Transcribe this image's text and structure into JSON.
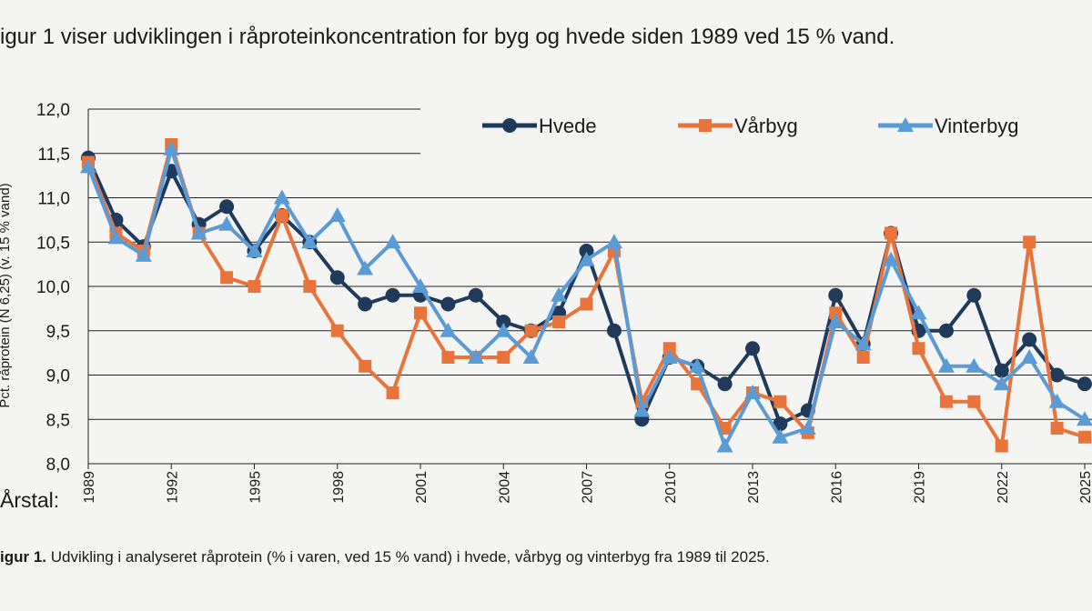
{
  "intro": "igur 1 viser udviklingen i råproteinkoncentration for byg og hvede siden 1989 ved 15 % vand.",
  "chart_data": {
    "type": "line",
    "y_label": "Pct. råprotein (N 6,25) (v. 15 % vand)",
    "x_label": "Årstal:",
    "x": [
      1989,
      1990,
      1991,
      1992,
      1993,
      1994,
      1995,
      1996,
      1997,
      1998,
      1999,
      2000,
      2001,
      2002,
      2003,
      2004,
      2005,
      2006,
      2007,
      2008,
      2009,
      2010,
      2011,
      2012,
      2013,
      2014,
      2015,
      2016,
      2017,
      2018,
      2019,
      2020,
      2021,
      2022,
      2023,
      2024,
      2025
    ],
    "xlim": [
      1989,
      2025
    ],
    "xticks": [
      1989,
      1992,
      1995,
      1998,
      2001,
      2004,
      2007,
      2010,
      2013,
      2016,
      2019,
      2022,
      2025
    ],
    "ylim": [
      8,
      12
    ],
    "yticks": [
      {
        "value": 8,
        "label": "8,0"
      },
      {
        "value": 8.5,
        "label": "8,5"
      },
      {
        "value": 9,
        "label": "9,0"
      },
      {
        "value": 9.5,
        "label": "9,5"
      },
      {
        "value": 10,
        "label": "10,0"
      },
      {
        "value": 10.5,
        "label": "10,5"
      },
      {
        "value": 11,
        "label": "11,0"
      },
      {
        "value": 11.5,
        "label": "11,5"
      },
      {
        "value": 12,
        "label": "12,0"
      }
    ],
    "grid": true,
    "series": [
      {
        "name": "Hvede",
        "color": "#1f3a5a",
        "marker": "circle",
        "values": [
          11.45,
          10.75,
          10.45,
          11.3,
          10.7,
          10.9,
          10.4,
          10.8,
          10.5,
          10.1,
          9.8,
          9.9,
          9.9,
          9.8,
          9.9,
          9.6,
          9.5,
          9.7,
          10.4,
          9.5,
          8.5,
          9.2,
          9.1,
          8.9,
          9.3,
          8.45,
          8.6,
          9.9,
          9.35,
          10.6,
          9.5,
          9.5,
          9.9,
          9.05,
          9.4,
          9.0,
          8.9
        ]
      },
      {
        "name": "Vårbyg",
        "color": "#e8743b",
        "marker": "square",
        "values": [
          11.4,
          10.6,
          10.4,
          11.6,
          10.6,
          10.1,
          10.0,
          10.8,
          10.0,
          9.5,
          9.1,
          8.8,
          9.7,
          9.2,
          9.2,
          9.2,
          9.5,
          9.6,
          9.8,
          10.4,
          8.7,
          9.3,
          8.9,
          8.4,
          8.8,
          8.7,
          8.35,
          9.7,
          9.2,
          10.6,
          9.3,
          8.7,
          8.7,
          8.2,
          10.5,
          8.4,
          8.3
        ]
      },
      {
        "name": "Vinterbyg",
        "color": "#5b9bd5",
        "marker": "triangle",
        "values": [
          11.35,
          10.55,
          10.35,
          11.55,
          10.6,
          10.7,
          10.4,
          11.0,
          10.5,
          10.8,
          10.2,
          10.5,
          10.0,
          9.5,
          9.2,
          9.5,
          9.2,
          9.9,
          10.3,
          10.5,
          8.6,
          9.2,
          9.1,
          8.2,
          8.8,
          8.3,
          8.4,
          9.6,
          9.35,
          10.3,
          9.7,
          9.1,
          9.1,
          8.9,
          9.2,
          8.7,
          8.5
        ]
      }
    ],
    "legend": "top"
  },
  "caption": {
    "label": "igur 1.",
    "text": " Udvikling i analyseret råprotein (% i varen, ved 15 % vand) i hvede, vårbyg og vinterbyg fra 1989 til 2025."
  }
}
